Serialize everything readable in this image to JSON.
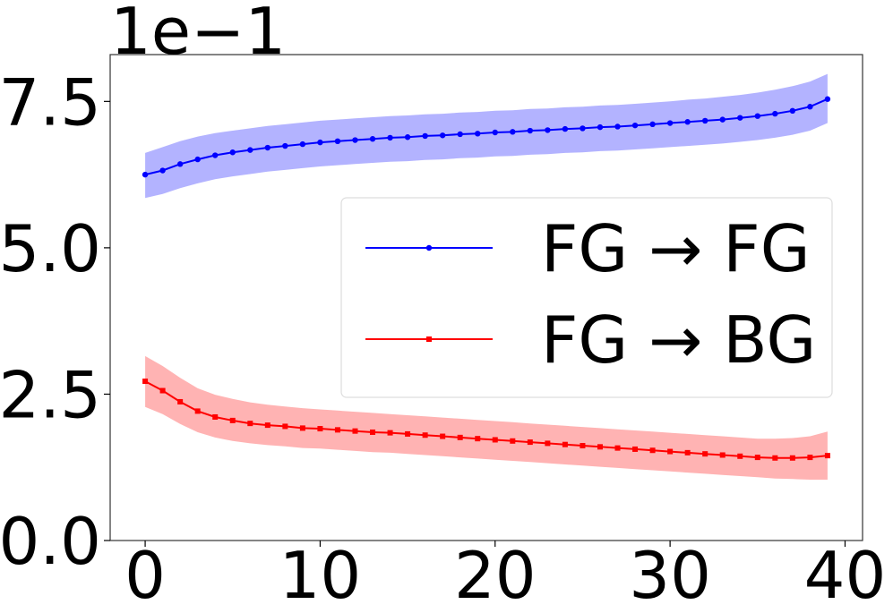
{
  "chart_data": {
    "type": "line",
    "title": "",
    "xlabel": "",
    "ylabel": "",
    "y_offset_label": "1e−1",
    "xlim": [
      -2,
      41
    ],
    "ylim": [
      0,
      8.3
    ],
    "x_ticks": [
      0,
      10,
      20,
      30,
      40
    ],
    "x_tick_labels": [
      "0",
      "10",
      "20",
      "30",
      "40"
    ],
    "y_ticks": [
      0,
      2.5,
      5,
      7.5
    ],
    "y_tick_labels": [
      "0.0",
      "2.5",
      "5.0",
      "7.5"
    ],
    "grid": false,
    "legend_position": "center-right",
    "x": [
      0,
      1,
      2,
      3,
      4,
      5,
      6,
      7,
      8,
      9,
      10,
      11,
      12,
      13,
      14,
      15,
      16,
      17,
      18,
      19,
      20,
      21,
      22,
      23,
      24,
      25,
      26,
      27,
      28,
      29,
      30,
      31,
      32,
      33,
      34,
      35,
      36,
      37,
      38,
      39
    ],
    "series": [
      {
        "name": "FG → FG",
        "color": "#0000ff",
        "band_color": "#8080ff",
        "marker": "circle",
        "values": [
          6.25,
          6.32,
          6.43,
          6.51,
          6.58,
          6.63,
          6.67,
          6.71,
          6.74,
          6.77,
          6.8,
          6.82,
          6.84,
          6.86,
          6.88,
          6.89,
          6.91,
          6.92,
          6.94,
          6.95,
          6.97,
          6.98,
          7.0,
          7.01,
          7.03,
          7.04,
          7.06,
          7.07,
          7.09,
          7.11,
          7.13,
          7.15,
          7.17,
          7.19,
          7.22,
          7.25,
          7.29,
          7.34,
          7.41,
          7.54
        ],
        "lower": [
          5.85,
          5.92,
          6.02,
          6.1,
          6.17,
          6.22,
          6.26,
          6.3,
          6.33,
          6.36,
          6.39,
          6.41,
          6.43,
          6.45,
          6.47,
          6.48,
          6.5,
          6.51,
          6.53,
          6.54,
          6.56,
          6.57,
          6.59,
          6.6,
          6.62,
          6.63,
          6.65,
          6.66,
          6.68,
          6.7,
          6.72,
          6.74,
          6.76,
          6.78,
          6.81,
          6.84,
          6.88,
          6.93,
          7.0,
          7.13
        ],
        "upper": [
          6.62,
          6.72,
          6.82,
          6.9,
          6.96,
          7.0,
          7.04,
          7.08,
          7.11,
          7.14,
          7.17,
          7.19,
          7.21,
          7.23,
          7.25,
          7.26,
          7.28,
          7.29,
          7.31,
          7.32,
          7.34,
          7.35,
          7.37,
          7.38,
          7.4,
          7.41,
          7.43,
          7.44,
          7.46,
          7.48,
          7.5,
          7.53,
          7.55,
          7.58,
          7.61,
          7.65,
          7.7,
          7.76,
          7.84,
          7.97
        ]
      },
      {
        "name": "FG → BG",
        "color": "#ff0000",
        "band_color": "#ff8080",
        "marker": "square",
        "values": [
          2.72,
          2.56,
          2.37,
          2.21,
          2.11,
          2.05,
          2.0,
          1.97,
          1.95,
          1.92,
          1.91,
          1.89,
          1.87,
          1.85,
          1.84,
          1.82,
          1.8,
          1.78,
          1.76,
          1.74,
          1.72,
          1.7,
          1.68,
          1.66,
          1.64,
          1.62,
          1.6,
          1.58,
          1.56,
          1.54,
          1.52,
          1.5,
          1.48,
          1.46,
          1.44,
          1.42,
          1.41,
          1.41,
          1.42,
          1.45
        ],
        "lower": [
          2.28,
          2.16,
          1.99,
          1.85,
          1.76,
          1.7,
          1.66,
          1.63,
          1.61,
          1.58,
          1.57,
          1.55,
          1.53,
          1.51,
          1.5,
          1.48,
          1.46,
          1.44,
          1.42,
          1.4,
          1.38,
          1.36,
          1.34,
          1.32,
          1.3,
          1.28,
          1.26,
          1.24,
          1.22,
          1.2,
          1.18,
          1.16,
          1.14,
          1.12,
          1.1,
          1.08,
          1.06,
          1.05,
          1.04,
          1.04
        ],
        "upper": [
          3.15,
          2.98,
          2.78,
          2.6,
          2.49,
          2.42,
          2.36,
          2.32,
          2.29,
          2.26,
          2.24,
          2.22,
          2.2,
          2.18,
          2.16,
          2.14,
          2.12,
          2.1,
          2.08,
          2.06,
          2.04,
          2.02,
          2.0,
          1.98,
          1.96,
          1.94,
          1.92,
          1.9,
          1.88,
          1.86,
          1.84,
          1.82,
          1.8,
          1.78,
          1.76,
          1.74,
          1.74,
          1.75,
          1.78,
          1.86
        ]
      }
    ]
  }
}
